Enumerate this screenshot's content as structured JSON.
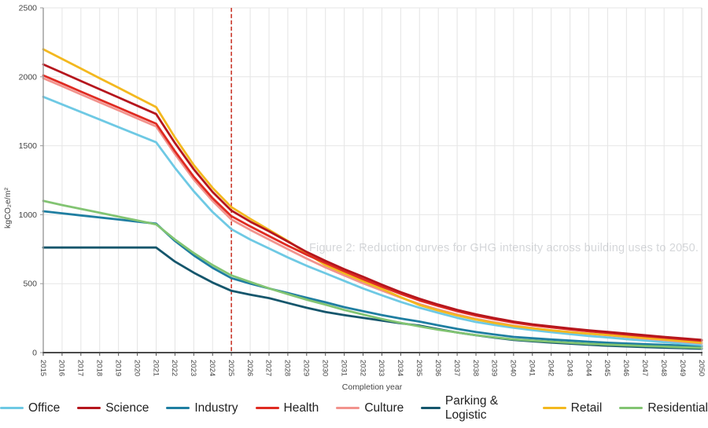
{
  "figure": {
    "watermark": "Figure 2: Reduction curves for GHG intensity across building uses to 2050."
  },
  "chart_data": {
    "type": "line",
    "title": "",
    "xlabel": "Completion year",
    "ylabel": "kgCO₂e/m²",
    "ylim": [
      0,
      2500
    ],
    "yticks": [
      0,
      500,
      1000,
      1500,
      2000,
      2500
    ],
    "grid": true,
    "legend_position": "bottom",
    "reference_line": {
      "x": 2025,
      "color": "#cb3a2c",
      "style": "dashed"
    },
    "x": [
      2015,
      2016,
      2017,
      2018,
      2019,
      2020,
      2021,
      2022,
      2023,
      2024,
      2025,
      2026,
      2027,
      2028,
      2029,
      2030,
      2031,
      2032,
      2033,
      2034,
      2035,
      2036,
      2037,
      2038,
      2039,
      2040,
      2041,
      2042,
      2043,
      2044,
      2045,
      2046,
      2047,
      2048,
      2049,
      2050
    ],
    "draw_order": [
      "Parking & Logistic",
      "Industry",
      "Residential",
      "Office",
      "Culture",
      "Retail",
      "Health",
      "Science"
    ],
    "series": [
      {
        "name": "Office",
        "color": "#6ec9e4",
        "values": [
          1855,
          1800,
          1745,
          1690,
          1635,
          1580,
          1525,
          1340,
          1170,
          1020,
          895,
          820,
          755,
          690,
          630,
          575,
          520,
          465,
          415,
          368,
          325,
          288,
          252,
          222,
          200,
          180,
          163,
          148,
          134,
          121,
          110,
          98,
          87,
          76,
          65,
          55
        ]
      },
      {
        "name": "Science",
        "color": "#b5161d",
        "values": [
          2090,
          2030,
          1970,
          1910,
          1850,
          1790,
          1730,
          1520,
          1330,
          1165,
          1030,
          950,
          880,
          805,
          730,
          665,
          605,
          550,
          492,
          438,
          390,
          348,
          310,
          278,
          250,
          225,
          205,
          190,
          175,
          162,
          150,
          138,
          126,
          114,
          103,
          92
        ]
      },
      {
        "name": "Industry",
        "color": "#1f7ea1",
        "values": [
          1025,
          1010,
          995,
          980,
          965,
          950,
          935,
          810,
          705,
          615,
          540,
          500,
          465,
          432,
          398,
          365,
          330,
          300,
          272,
          247,
          225,
          198,
          172,
          150,
          131,
          114,
          104,
          95,
          87,
          79,
          72,
          66,
          61,
          56,
          51,
          46
        ]
      },
      {
        "name": "Health",
        "color": "#df2b22",
        "values": [
          2010,
          1952,
          1893,
          1835,
          1777,
          1718,
          1660,
          1460,
          1275,
          1120,
          990,
          915,
          845,
          775,
          710,
          650,
          590,
          533,
          478,
          426,
          378,
          338,
          300,
          268,
          242,
          218,
          199,
          183,
          168,
          155,
          143,
          131,
          119,
          108,
          97,
          86
        ]
      },
      {
        "name": "Culture",
        "color": "#f2938d",
        "values": [
          1990,
          1932,
          1873,
          1815,
          1757,
          1698,
          1640,
          1440,
          1255,
          1100,
          965,
          890,
          820,
          750,
          682,
          618,
          560,
          503,
          450,
          399,
          352,
          312,
          276,
          245,
          219,
          196,
          178,
          162,
          149,
          137,
          126,
          114,
          102,
          91,
          79,
          68
        ]
      },
      {
        "name": "Parking & Logistic",
        "color": "#15566c",
        "values": [
          762,
          762,
          762,
          762,
          762,
          762,
          762,
          660,
          580,
          508,
          448,
          420,
          395,
          360,
          325,
          295,
          272,
          252,
          232,
          213,
          196,
          170,
          146,
          126,
          108,
          92,
          82,
          73,
          65,
          57,
          50,
          45,
          40,
          36,
          32,
          28
        ]
      },
      {
        "name": "Retail",
        "color": "#f3b81f",
        "values": [
          2200,
          2130,
          2060,
          1990,
          1920,
          1850,
          1780,
          1560,
          1360,
          1195,
          1055,
          970,
          890,
          810,
          720,
          635,
          575,
          518,
          462,
          402,
          345,
          305,
          270,
          240,
          214,
          192,
          176,
          161,
          148,
          137,
          128,
          117,
          106,
          95,
          84,
          72
        ]
      },
      {
        "name": "Residential",
        "color": "#82c472",
        "values": [
          1100,
          1070,
          1042,
          1014,
          986,
          958,
          930,
          820,
          722,
          635,
          560,
          512,
          466,
          424,
          384,
          348,
          310,
          276,
          244,
          216,
          190,
          166,
          146,
          127,
          111,
          96,
          87,
          79,
          71,
          64,
          58,
          53,
          48,
          43,
          38,
          34
        ]
      }
    ]
  }
}
